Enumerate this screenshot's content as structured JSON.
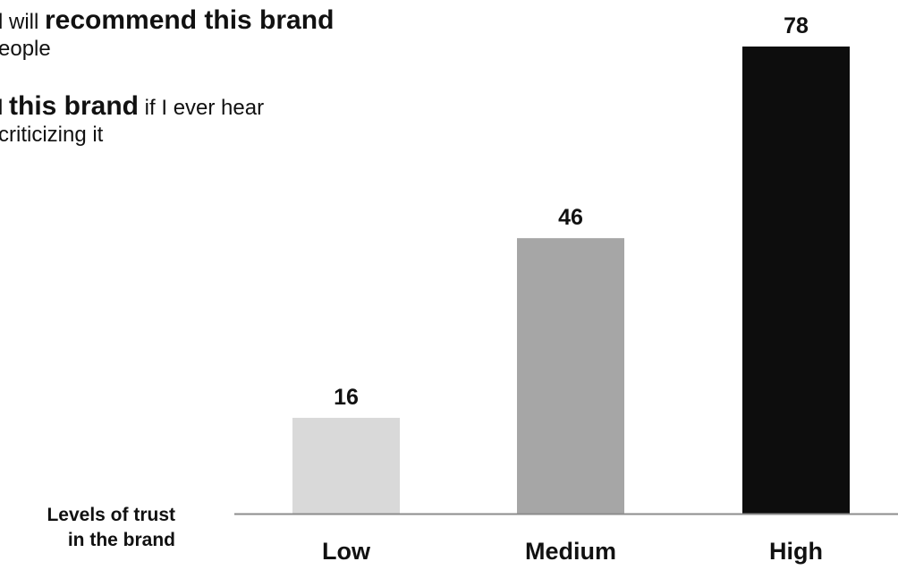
{
  "captions": [
    {
      "line1_pre": "l will ",
      "line1_strong": "recommend this brand",
      "line2": "eople"
    },
    {
      "line1_pre": "l ",
      "line1_strong": "this brand",
      "line1_post": " if I ever hear",
      "line2": "criticizing it"
    }
  ],
  "axis_title": {
    "line1": "Levels of trust",
    "line2": "in the brand"
  },
  "chart_data": {
    "type": "bar",
    "categories": [
      "Low",
      "Medium",
      "High"
    ],
    "values": [
      16,
      46,
      78
    ],
    "data_labels": [
      "16",
      "46",
      "78"
    ],
    "colors": [
      "#d9d9d9",
      "#a6a6a6",
      "#0d0d0d"
    ],
    "axis_color": "#8c8c8c",
    "title": "",
    "xlabel": "Levels of trust in the brand",
    "ylabel": "",
    "ylim": [
      0,
      78
    ],
    "grid": false,
    "legend": "none"
  }
}
